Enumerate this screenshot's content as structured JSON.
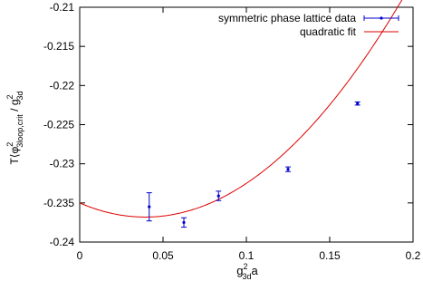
{
  "chart_data": {
    "type": "scatter",
    "xlabel": {
      "base": "g",
      "sup": "2",
      "sub": "3d",
      "tail": "a"
    },
    "ylabel": {
      "p1": "T⟨φ",
      "sup1": "2",
      "sub1": "3loop,crit",
      "p2": " / g",
      "sup2": "2",
      "sub2": "3d"
    },
    "xlim": [
      0,
      0.2
    ],
    "ylim": [
      -0.24,
      -0.21
    ],
    "xticks": [
      0,
      0.05,
      0.1,
      0.15,
      0.2
    ],
    "xtick_labels": [
      "0",
      "0.05",
      "0.1",
      "0.15",
      "0.2"
    ],
    "yticks": [
      -0.24,
      -0.235,
      -0.23,
      -0.225,
      -0.22,
      -0.215,
      -0.21
    ],
    "ytick_labels": [
      "-0.24",
      "-0.235",
      "-0.23",
      "-0.225",
      "-0.22",
      "-0.215",
      "-0.21"
    ],
    "grid": false,
    "legend_position": "top-right",
    "series": [
      {
        "name": "symmetric phase lattice data",
        "kind": "points-errorbars",
        "color": "#0000cc",
        "points": [
          {
            "x": 0.0417,
            "y": -0.2355,
            "yerr": 0.0018
          },
          {
            "x": 0.0625,
            "y": -0.2375,
            "yerr": 0.0006
          },
          {
            "x": 0.0833,
            "y": -0.2341,
            "yerr": 0.0006
          },
          {
            "x": 0.125,
            "y": -0.2307,
            "yerr": 0.0003
          },
          {
            "x": 0.1667,
            "y": -0.2223,
            "yerr": 0.0002
          }
        ]
      },
      {
        "name": "quadratic fit",
        "kind": "line",
        "color": "#dd0000",
        "coefficients": [
          -0.235,
          -0.092,
          1.17
        ]
      }
    ]
  }
}
